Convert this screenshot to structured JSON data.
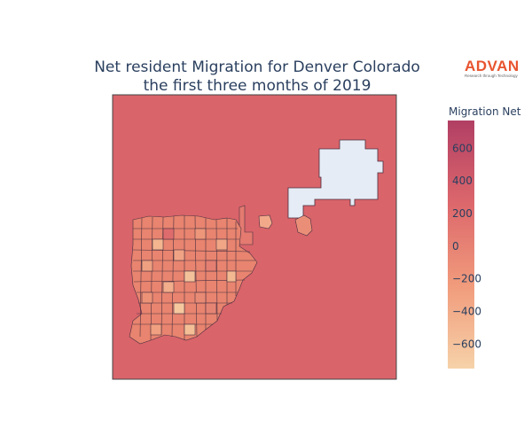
{
  "title_line1": "Net resident Migration for Denver Colorado",
  "title_line2": "the first three months of 2019",
  "logo": {
    "brand": "ADVAN",
    "tagline": "Research through Technology"
  },
  "colorbar": {
    "title": "Migration Net",
    "min": -750,
    "max": 770,
    "ticks": [
      600,
      400,
      200,
      0,
      -200,
      -400,
      -600
    ],
    "tick_labels": [
      "600",
      "400",
      "200",
      "0",
      "−200",
      "−400",
      "−600"
    ],
    "colorscale": [
      "#f6d2a9",
      "#f19c7c",
      "#dd686c",
      "#b13f64"
    ]
  },
  "colors": {
    "background_region": "#d9646a",
    "missing_region": "#e6ecf5",
    "tract_border": "#4a3040"
  }
}
